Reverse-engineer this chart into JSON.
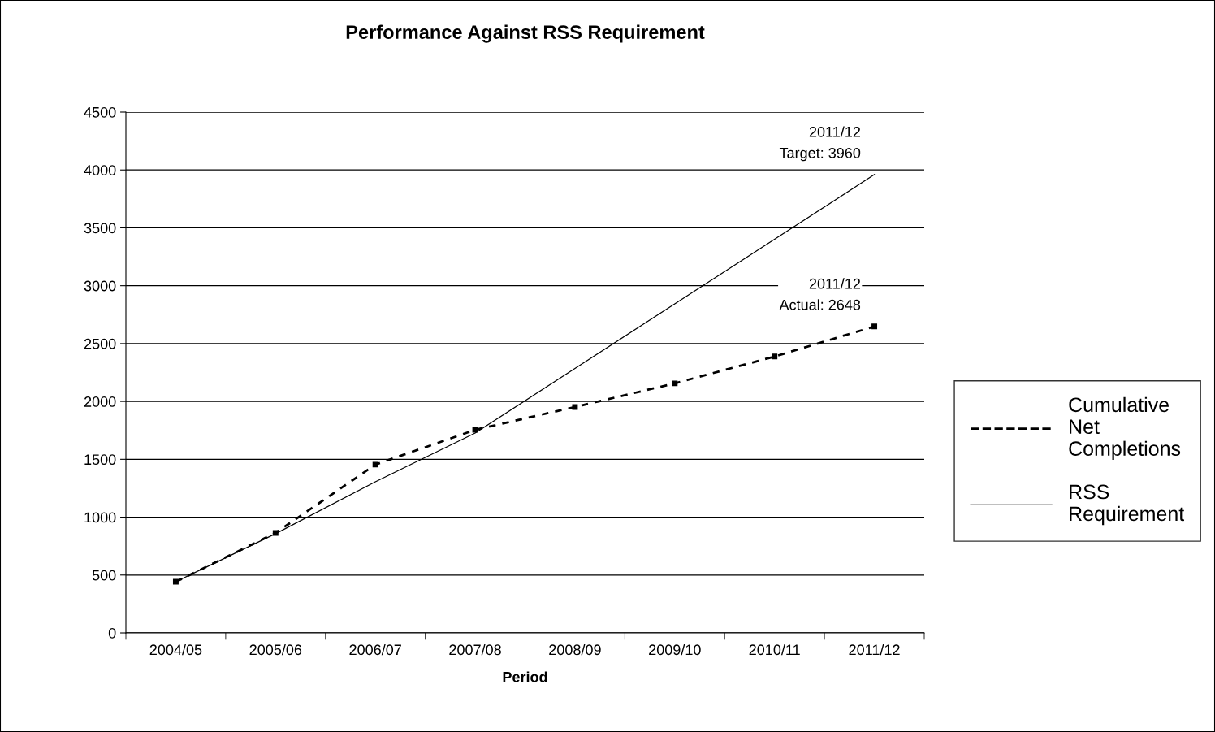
{
  "chart_data": {
    "type": "line",
    "title": "Performance Against RSS Requirement",
    "xlabel": "Period",
    "categories": [
      "2004/05",
      "2005/06",
      "2006/07",
      "2007/08",
      "2008/09",
      "2009/10",
      "2010/11",
      "2011/12"
    ],
    "series": [
      {
        "name": "Cumulative Net Completions",
        "color": "#000000",
        "line_style": "dashed",
        "marker": "square",
        "values": [
          442,
          864,
          1454,
          1755,
          1952,
          2156,
          2388,
          2648
        ]
      },
      {
        "name": "RSS Requirement",
        "color": "#000000",
        "line_style": "solid",
        "marker": "none",
        "values": [
          442,
          857,
          1306,
          1727,
          2285,
          2843,
          3401,
          3960
        ]
      }
    ],
    "ylim": [
      0,
      4500
    ],
    "yticks": [
      0,
      500,
      1000,
      1500,
      2000,
      2500,
      3000,
      3500,
      4000,
      4500
    ],
    "grid": "y",
    "legend": "right",
    "annotations": [
      {
        "text": "2011/12\nTarget: 3960",
        "x": "2011/12",
        "y": 3960
      },
      {
        "text": "2011/12\nActual: 2648",
        "x": "2011/12",
        "y": 2648
      }
    ]
  }
}
